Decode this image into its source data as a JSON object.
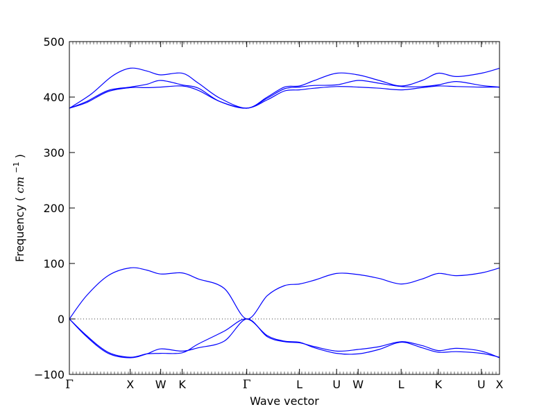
{
  "chart_data": {
    "type": "line",
    "title": "",
    "xlabel": "Wave vector",
    "ylabel": "Frequency",
    "ylabel_unit_base": "cm",
    "ylabel_unit_exp": "−1",
    "ylim": [
      -100,
      500
    ],
    "y_ticks": [
      -100,
      0,
      100,
      200,
      300,
      400,
      500
    ],
    "y_tick_labels": [
      "−100",
      "0",
      "100",
      "200",
      "300",
      "400",
      "500"
    ],
    "xlim": [
      0,
      1
    ],
    "x_ticks": [
      0,
      0.1415,
      0.2123,
      0.2623,
      0.4124,
      0.5349,
      0.6213,
      0.6713,
      0.7713,
      0.8578,
      0.9578,
      1.0
    ],
    "x_tick_labels": [
      "Γ",
      "X",
      "W",
      "K",
      "Γ",
      "L",
      "U",
      "W",
      "L",
      "K",
      "U",
      "X"
    ],
    "zero_line": true,
    "grid": false,
    "series_color": "#0000ff",
    "series": [
      {
        "points": [
          [
            0,
            380
          ],
          [
            0.04,
            390
          ],
          [
            0.09,
            410
          ],
          [
            0.1415,
            417
          ],
          [
            0.18,
            417
          ],
          [
            0.2123,
            418
          ],
          [
            0.2623,
            420
          ],
          [
            0.3,
            412
          ],
          [
            0.35,
            392
          ],
          [
            0.4124,
            380
          ],
          [
            0.46,
            395
          ],
          [
            0.5,
            411
          ],
          [
            0.5349,
            413
          ],
          [
            0.57,
            416
          ],
          [
            0.6213,
            419
          ],
          [
            0.6713,
            418
          ],
          [
            0.72,
            416
          ],
          [
            0.7713,
            413
          ],
          [
            0.82,
            417
          ],
          [
            0.8578,
            420
          ],
          [
            0.9,
            419
          ],
          [
            0.9578,
            418
          ],
          [
            1.0,
            418
          ]
        ]
      },
      {
        "points": [
          [
            0,
            380
          ],
          [
            0.04,
            392
          ],
          [
            0.09,
            412
          ],
          [
            0.1415,
            418
          ],
          [
            0.18,
            423
          ],
          [
            0.2123,
            430
          ],
          [
            0.2623,
            422
          ],
          [
            0.3,
            416
          ],
          [
            0.35,
            392
          ],
          [
            0.4124,
            380
          ],
          [
            0.46,
            398
          ],
          [
            0.5,
            415
          ],
          [
            0.5349,
            418
          ],
          [
            0.57,
            421
          ],
          [
            0.6213,
            422
          ],
          [
            0.6713,
            430
          ],
          [
            0.72,
            425
          ],
          [
            0.7713,
            419
          ],
          [
            0.82,
            419
          ],
          [
            0.8578,
            422
          ],
          [
            0.9,
            428
          ],
          [
            0.9578,
            421
          ],
          [
            1.0,
            418
          ]
        ]
      },
      {
        "points": [
          [
            0,
            380
          ],
          [
            0.05,
            405
          ],
          [
            0.1,
            438
          ],
          [
            0.1415,
            452
          ],
          [
            0.18,
            447
          ],
          [
            0.2123,
            440
          ],
          [
            0.2623,
            443
          ],
          [
            0.3,
            425
          ],
          [
            0.35,
            398
          ],
          [
            0.4124,
            380
          ],
          [
            0.46,
            400
          ],
          [
            0.5,
            418
          ],
          [
            0.5349,
            420
          ],
          [
            0.57,
            430
          ],
          [
            0.6213,
            443
          ],
          [
            0.6713,
            440
          ],
          [
            0.72,
            430
          ],
          [
            0.7713,
            420
          ],
          [
            0.82,
            430
          ],
          [
            0.8578,
            443
          ],
          [
            0.9,
            437
          ],
          [
            0.9578,
            443
          ],
          [
            1.0,
            452
          ]
        ]
      },
      {
        "points": [
          [
            0,
            0
          ],
          [
            0.04,
            42
          ],
          [
            0.09,
            78
          ],
          [
            0.1415,
            92
          ],
          [
            0.18,
            88
          ],
          [
            0.2123,
            81
          ],
          [
            0.2623,
            83
          ],
          [
            0.3,
            72
          ],
          [
            0.36,
            55
          ],
          [
            0.4124,
            0
          ],
          [
            0.46,
            42
          ],
          [
            0.5,
            60
          ],
          [
            0.5349,
            63
          ],
          [
            0.57,
            70
          ],
          [
            0.6213,
            82
          ],
          [
            0.6713,
            80
          ],
          [
            0.72,
            73
          ],
          [
            0.7713,
            63
          ],
          [
            0.82,
            72
          ],
          [
            0.8578,
            82
          ],
          [
            0.9,
            78
          ],
          [
            0.9578,
            83
          ],
          [
            1.0,
            92
          ]
        ]
      },
      {
        "points": [
          [
            0,
            0
          ],
          [
            0.04,
            -30
          ],
          [
            0.09,
            -60
          ],
          [
            0.1415,
            -69
          ],
          [
            0.18,
            -63
          ],
          [
            0.2123,
            -62
          ],
          [
            0.2623,
            -61
          ],
          [
            0.3,
            -45
          ],
          [
            0.36,
            -22
          ],
          [
            0.4124,
            0
          ],
          [
            0.46,
            -30
          ],
          [
            0.5,
            -40
          ],
          [
            0.5349,
            -42
          ],
          [
            0.57,
            -52
          ],
          [
            0.6213,
            -62
          ],
          [
            0.6713,
            -63
          ],
          [
            0.72,
            -55
          ],
          [
            0.7713,
            -42
          ],
          [
            0.82,
            -52
          ],
          [
            0.8578,
            -60
          ],
          [
            0.9,
            -59
          ],
          [
            0.9578,
            -62
          ],
          [
            1.0,
            -69
          ]
        ]
      },
      {
        "points": [
          [
            0,
            0
          ],
          [
            0.04,
            -32
          ],
          [
            0.09,
            -62
          ],
          [
            0.1415,
            -70
          ],
          [
            0.18,
            -63
          ],
          [
            0.2123,
            -54
          ],
          [
            0.2623,
            -58
          ],
          [
            0.3,
            -52
          ],
          [
            0.36,
            -40
          ],
          [
            0.4124,
            0
          ],
          [
            0.46,
            -32
          ],
          [
            0.5,
            -41
          ],
          [
            0.5349,
            -43
          ],
          [
            0.57,
            -50
          ],
          [
            0.6213,
            -58
          ],
          [
            0.6713,
            -55
          ],
          [
            0.72,
            -50
          ],
          [
            0.7713,
            -41
          ],
          [
            0.82,
            -48
          ],
          [
            0.8578,
            -57
          ],
          [
            0.9,
            -53
          ],
          [
            0.9578,
            -58
          ],
          [
            1.0,
            -70
          ]
        ]
      }
    ]
  }
}
